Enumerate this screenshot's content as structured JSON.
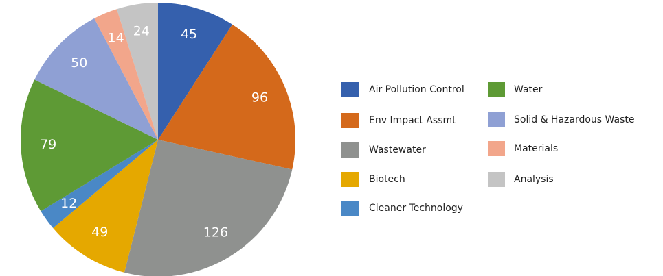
{
  "chart_data": {
    "type": "pie",
    "categories": [
      "Air Pollution Control",
      "Env Impact Assmt",
      "Wastewater",
      "Biotech",
      "Cleaner Technology",
      "Water",
      "Solid & Hazardous Waste",
      "Materials",
      "Analysis"
    ],
    "values": [
      45,
      96,
      126,
      49,
      12,
      79,
      50,
      14,
      24
    ],
    "colors": [
      "#3560ad",
      "#d4691b",
      "#8f918f",
      "#e5a800",
      "#4a88c6",
      "#5e9a35",
      "#8fa0d4",
      "#f2a68b",
      "#c4c4c4"
    ],
    "legend": "right"
  }
}
